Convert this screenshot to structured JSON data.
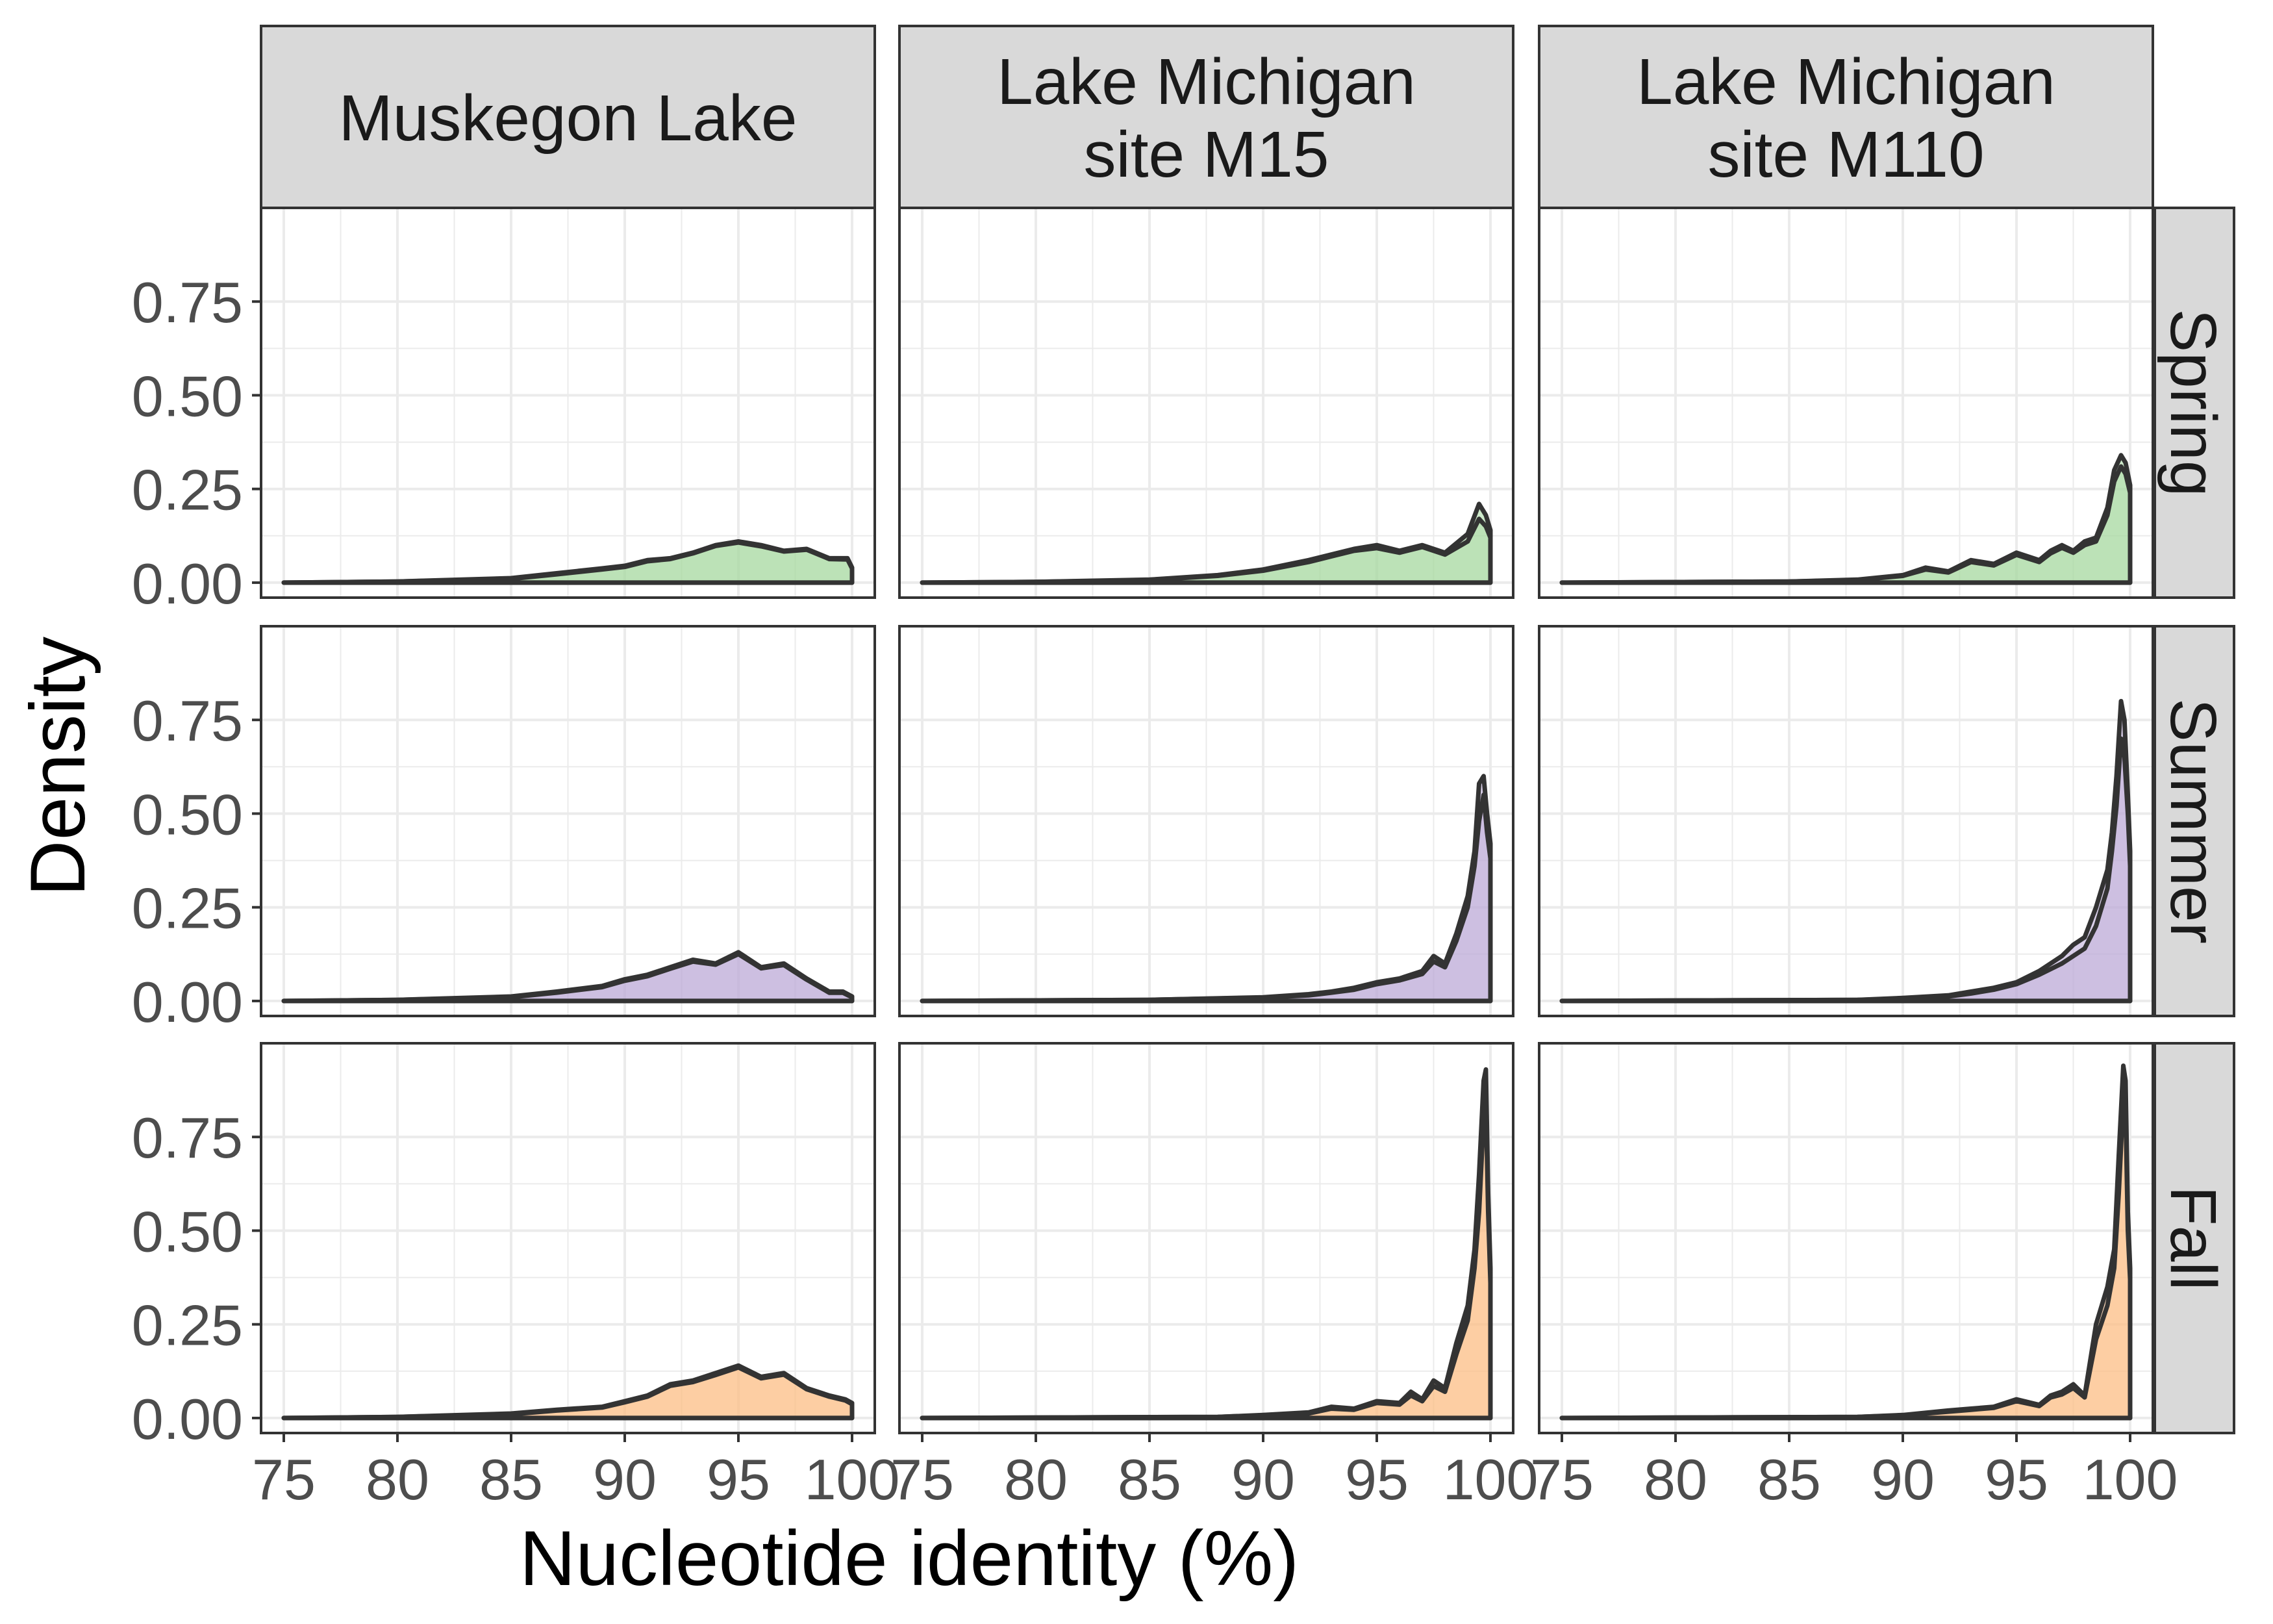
{
  "colors": {
    "strip_fill": "#d9d9d9",
    "panel_border": "#333333",
    "grid": "#ebebeb",
    "curve": "#333333",
    "tick_text": "#4d4d4d",
    "spring_fill": "#a6d9a0",
    "summer_fill": "#bcaad8",
    "fall_fill": "#fdbe85"
  },
  "chart_data": {
    "type": "area",
    "xlabel": "Nucleotide identity (%)",
    "ylabel": "Density",
    "xlim": [
      74,
      101
    ],
    "ylim": [
      -0.04,
      1.0
    ],
    "x_ticks": [
      75,
      80,
      85,
      90,
      95,
      100
    ],
    "x_tick_labels": [
      "75",
      "80",
      "85",
      "90",
      "95",
      "100"
    ],
    "y_ticks": [
      0,
      0.25,
      0.5,
      0.75
    ],
    "y_tick_labels": [
      "0.00",
      "0.25",
      "0.50",
      "0.75"
    ],
    "grid": true,
    "columns": [
      {
        "label_lines": [
          "Muskegon Lake"
        ]
      },
      {
        "label_lines": [
          "Lake Michigan",
          "site M15"
        ]
      },
      {
        "label_lines": [
          "Lake Michigan",
          "site M110"
        ]
      }
    ],
    "rows": [
      {
        "label": "Spring",
        "fill_key": "spring_fill"
      },
      {
        "label": "Summer",
        "fill_key": "summer_fill"
      },
      {
        "label": "Fall",
        "fill_key": "fall_fill"
      }
    ],
    "panels": [
      {
        "row": 0,
        "col": 0,
        "series": [
          {
            "x": [
              75,
              80,
              85,
              87,
              89,
              90,
              91,
              92,
              93,
              94,
              95,
              96,
              97,
              98,
              99,
              99.8,
              100
            ],
            "y": [
              0,
              0.003,
              0.012,
              0.025,
              0.038,
              0.045,
              0.06,
              0.065,
              0.08,
              0.1,
              0.11,
              0.1,
              0.085,
              0.09,
              0.065,
              0.065,
              0.04
            ]
          },
          {
            "x": [
              75,
              80,
              85,
              87,
              89,
              90,
              91,
              92,
              93,
              94,
              95,
              96,
              97,
              98,
              99,
              99.8,
              100
            ],
            "y": [
              0,
              0.003,
              0.01,
              0.022,
              0.035,
              0.042,
              0.057,
              0.063,
              0.078,
              0.098,
              0.107,
              0.097,
              0.083,
              0.088,
              0.063,
              0.062,
              0.038
            ]
          }
        ]
      },
      {
        "row": 0,
        "col": 1,
        "series": [
          {
            "x": [
              75,
              80,
              85,
              88,
              90,
              92,
              93,
              94,
              95,
              96,
              97,
              98,
              99,
              99.5,
              99.8,
              100
            ],
            "y": [
              0,
              0.002,
              0.008,
              0.02,
              0.035,
              0.06,
              0.075,
              0.09,
              0.1,
              0.085,
              0.1,
              0.08,
              0.13,
              0.21,
              0.18,
              0.14
            ]
          },
          {
            "x": [
              75,
              80,
              85,
              88,
              90,
              92,
              93,
              94,
              95,
              96,
              97,
              98,
              99,
              99.5,
              99.8,
              100
            ],
            "y": [
              0,
              0.002,
              0.007,
              0.018,
              0.032,
              0.055,
              0.07,
              0.085,
              0.092,
              0.08,
              0.095,
              0.075,
              0.11,
              0.17,
              0.15,
              0.12
            ]
          }
        ]
      },
      {
        "row": 0,
        "col": 2,
        "series": [
          {
            "x": [
              75,
              85,
              88,
              90,
              91,
              92,
              93,
              94,
              95,
              96,
              96.5,
              97,
              97.5,
              98,
              98.5,
              99,
              99.3,
              99.6,
              99.8,
              100
            ],
            "y": [
              0,
              0.003,
              0.008,
              0.02,
              0.04,
              0.03,
              0.06,
              0.05,
              0.08,
              0.06,
              0.085,
              0.1,
              0.085,
              0.11,
              0.12,
              0.2,
              0.3,
              0.34,
              0.32,
              0.26
            ]
          },
          {
            "x": [
              75,
              85,
              88,
              90,
              91,
              92,
              93,
              94,
              95,
              96,
              96.5,
              97,
              97.5,
              98,
              98.5,
              99,
              99.3,
              99.6,
              99.8,
              100
            ],
            "y": [
              0,
              0.003,
              0.007,
              0.018,
              0.035,
              0.027,
              0.055,
              0.046,
              0.074,
              0.055,
              0.078,
              0.093,
              0.08,
              0.1,
              0.11,
              0.18,
              0.27,
              0.31,
              0.29,
              0.24
            ]
          }
        ]
      },
      {
        "row": 1,
        "col": 0,
        "series": [
          {
            "x": [
              75,
              80,
              85,
              87,
              89,
              90,
              91,
              92,
              93,
              94,
              95,
              96,
              97,
              98,
              99,
              99.6,
              100
            ],
            "y": [
              0,
              0.003,
              0.012,
              0.025,
              0.04,
              0.058,
              0.07,
              0.09,
              0.11,
              0.1,
              0.13,
              0.09,
              0.1,
              0.06,
              0.025,
              0.025,
              0.012
            ]
          },
          {
            "x": [
              75,
              80,
              85,
              87,
              89,
              90,
              91,
              92,
              93,
              94,
              95,
              96,
              97,
              98,
              99,
              99.6,
              100
            ],
            "y": [
              0,
              0.003,
              0.01,
              0.022,
              0.037,
              0.054,
              0.066,
              0.086,
              0.105,
              0.097,
              0.125,
              0.087,
              0.096,
              0.057,
              0.022,
              0.022,
              0.01
            ]
          }
        ]
      },
      {
        "row": 1,
        "col": 1,
        "series": [
          {
            "x": [
              75,
              85,
              90,
              92,
              93,
              94,
              95,
              96,
              97,
              97.5,
              98,
              98.5,
              99,
              99.3,
              99.5,
              99.7,
              99.85,
              100
            ],
            "y": [
              0,
              0.003,
              0.01,
              0.018,
              0.025,
              0.035,
              0.05,
              0.06,
              0.08,
              0.12,
              0.1,
              0.18,
              0.28,
              0.4,
              0.58,
              0.6,
              0.5,
              0.42
            ]
          },
          {
            "x": [
              75,
              85,
              90,
              92,
              93,
              94,
              95,
              96,
              97,
              97.5,
              98,
              98.5,
              99,
              99.3,
              99.5,
              99.7,
              99.85,
              100
            ],
            "y": [
              0,
              0.003,
              0.009,
              0.015,
              0.022,
              0.03,
              0.045,
              0.055,
              0.072,
              0.105,
              0.09,
              0.16,
              0.25,
              0.36,
              0.48,
              0.55,
              0.45,
              0.38
            ]
          }
        ]
      },
      {
        "row": 1,
        "col": 2,
        "series": [
          {
            "x": [
              75,
              88,
              90,
              92,
              93,
              94,
              95,
              96,
              97,
              97.5,
              98,
              98.5,
              99,
              99.2,
              99.4,
              99.6,
              99.75,
              99.9,
              100
            ],
            "y": [
              0,
              0.003,
              0.008,
              0.015,
              0.025,
              0.035,
              0.05,
              0.08,
              0.12,
              0.15,
              0.17,
              0.25,
              0.35,
              0.45,
              0.6,
              0.8,
              0.75,
              0.55,
              0.4
            ]
          },
          {
            "x": [
              75,
              88,
              90,
              92,
              93,
              94,
              95,
              96,
              97,
              97.5,
              98,
              98.5,
              99,
              99.2,
              99.4,
              99.6,
              99.75,
              99.9,
              100
            ],
            "y": [
              0,
              0.003,
              0.006,
              0.012,
              0.02,
              0.03,
              0.045,
              0.07,
              0.1,
              0.12,
              0.14,
              0.2,
              0.3,
              0.4,
              0.52,
              0.7,
              0.65,
              0.5,
              0.36
            ]
          }
        ]
      },
      {
        "row": 2,
        "col": 0,
        "series": [
          {
            "x": [
              75,
              80,
              85,
              87,
              89,
              90,
              91,
              92,
              93,
              94,
              95,
              96,
              97,
              98,
              99,
              99.7,
              100
            ],
            "y": [
              0,
              0.003,
              0.012,
              0.022,
              0.03,
              0.045,
              0.06,
              0.09,
              0.1,
              0.12,
              0.14,
              0.11,
              0.12,
              0.08,
              0.06,
              0.05,
              0.04
            ]
          },
          {
            "x": [
              75,
              80,
              85,
              87,
              89,
              90,
              91,
              92,
              93,
              94,
              95,
              96,
              97,
              98,
              99,
              99.7,
              100
            ],
            "y": [
              0,
              0.003,
              0.01,
              0.02,
              0.028,
              0.042,
              0.057,
              0.086,
              0.096,
              0.115,
              0.135,
              0.106,
              0.116,
              0.077,
              0.057,
              0.047,
              0.037
            ]
          }
        ]
      },
      {
        "row": 2,
        "col": 1,
        "series": [
          {
            "x": [
              75,
              88,
              90,
              92,
              93,
              94,
              95,
              96,
              96.5,
              97,
              97.5,
              98,
              98.5,
              99,
              99.3,
              99.5,
              99.7,
              99.8,
              99.9,
              100
            ],
            "y": [
              0,
              0.003,
              0.008,
              0.015,
              0.03,
              0.025,
              0.045,
              0.04,
              0.07,
              0.05,
              0.1,
              0.08,
              0.2,
              0.3,
              0.45,
              0.65,
              0.9,
              0.93,
              0.6,
              0.4
            ]
          },
          {
            "x": [
              75,
              88,
              90,
              92,
              93,
              94,
              95,
              96,
              96.5,
              97,
              97.5,
              98,
              98.5,
              99,
              99.3,
              99.5,
              99.7,
              99.8,
              99.9,
              100
            ],
            "y": [
              0,
              0.003,
              0.007,
              0.012,
              0.025,
              0.022,
              0.04,
              0.036,
              0.06,
              0.045,
              0.085,
              0.07,
              0.17,
              0.26,
              0.4,
              0.55,
              0.8,
              0.84,
              0.55,
              0.36
            ]
          }
        ]
      },
      {
        "row": 2,
        "col": 2,
        "series": [
          {
            "x": [
              75,
              88,
              90,
              92,
              93,
              94,
              95,
              96,
              96.5,
              97,
              97.5,
              98,
              98.5,
              99,
              99.3,
              99.5,
              99.7,
              99.8,
              99.9,
              100
            ],
            "y": [
              0,
              0.003,
              0.008,
              0.02,
              0.025,
              0.03,
              0.05,
              0.035,
              0.06,
              0.07,
              0.09,
              0.06,
              0.25,
              0.35,
              0.45,
              0.7,
              0.94,
              0.9,
              0.55,
              0.4
            ]
          },
          {
            "x": [
              75,
              88,
              90,
              92,
              93,
              94,
              95,
              96,
              96.5,
              97,
              97.5,
              98,
              98.5,
              99,
              99.3,
              99.5,
              99.7,
              99.8,
              99.9,
              100
            ],
            "y": [
              0,
              0.003,
              0.007,
              0.017,
              0.022,
              0.027,
              0.045,
              0.032,
              0.055,
              0.063,
              0.08,
              0.055,
              0.21,
              0.3,
              0.4,
              0.6,
              0.85,
              0.82,
              0.5,
              0.37
            ]
          }
        ]
      }
    ]
  }
}
